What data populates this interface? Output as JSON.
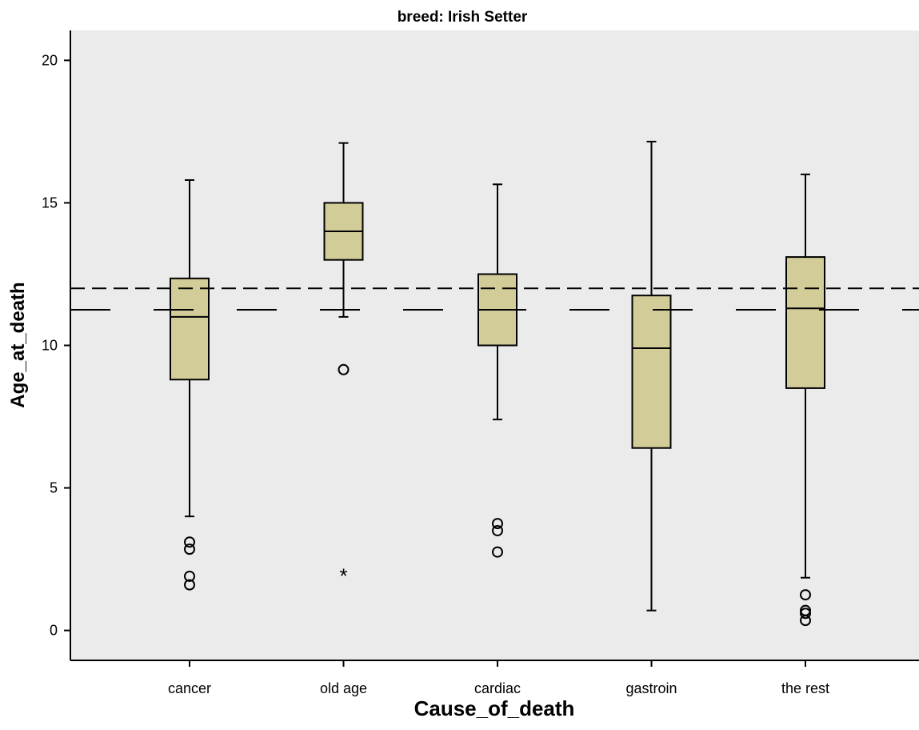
{
  "chart_data": {
    "type": "boxplot",
    "title": "breed: Irish Setter",
    "xlabel": "Cause_of_death",
    "ylabel": "Age_at_death",
    "ylim": [
      -1.05,
      21.05
    ],
    "yticks": [
      0,
      5,
      10,
      15,
      20
    ],
    "categories": [
      "cancer",
      "old age",
      "cardiac",
      "gastroin",
      "the rest"
    ],
    "boxes": [
      {
        "category": "cancer",
        "whisker_low": 4.0,
        "q1": 8.8,
        "median": 11.0,
        "q3": 12.35,
        "whisker_high": 15.8,
        "outliers": [
          3.1,
          2.85,
          1.9,
          1.6
        ],
        "extremes": []
      },
      {
        "category": "old age",
        "whisker_low": 11.0,
        "q1": 13.0,
        "median": 14.0,
        "q3": 15.0,
        "whisker_high": 17.1,
        "outliers": [
          9.15
        ],
        "extremes": [
          2.0
        ]
      },
      {
        "category": "cardiac",
        "whisker_low": 7.4,
        "q1": 10.0,
        "median": 11.25,
        "q3": 12.5,
        "whisker_high": 15.65,
        "outliers": [
          3.75,
          3.5,
          2.75
        ],
        "extremes": []
      },
      {
        "category": "gastroin",
        "whisker_low": 0.7,
        "q1": 6.4,
        "median": 9.9,
        "q3": 11.75,
        "whisker_high": 17.15,
        "outliers": [],
        "extremes": []
      },
      {
        "category": "the rest",
        "whisker_low": 1.85,
        "q1": 8.5,
        "median": 11.3,
        "q3": 13.1,
        "whisker_high": 16.0,
        "outliers": [
          1.25,
          0.7,
          0.6,
          0.35
        ],
        "extremes": []
      }
    ],
    "reference_lines": [
      {
        "value": 12.0,
        "style": "short-dash"
      },
      {
        "value": 11.25,
        "style": "long-dash"
      }
    ],
    "grid": false,
    "legend": "none",
    "colors": {
      "box_fill": "#d2cc99",
      "plot_bg": "#ebebeb",
      "line": "#000000"
    }
  }
}
